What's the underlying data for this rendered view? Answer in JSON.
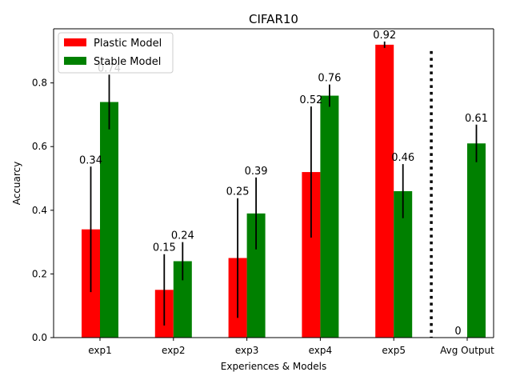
{
  "chart_data": {
    "type": "bar",
    "title": "CIFAR10",
    "xlabel": "Experiences & Models",
    "ylabel": "Accuarcy",
    "categories": [
      "exp1",
      "exp2",
      "exp3",
      "exp4",
      "exp5",
      "Avg Output"
    ],
    "ylim": [
      0,
      0.97
    ],
    "yticks": [
      0.0,
      0.2,
      0.4,
      0.6,
      0.8
    ],
    "ytick_labels": [
      "0.0",
      "0.2",
      "0.4",
      "0.6",
      "0.8"
    ],
    "grid": false,
    "legend_position": "upper-left",
    "series": [
      {
        "name": "Plastic Model",
        "color": "#ff0000",
        "values": [
          0.34,
          0.15,
          0.25,
          0.52,
          0.92,
          0
        ],
        "labels": [
          "0.34",
          "0.15",
          "0.25",
          "0.52",
          "0.92",
          "0"
        ],
        "error": [
          0.197,
          0.112,
          0.188,
          0.206,
          0.01,
          0
        ]
      },
      {
        "name": "Stable Model",
        "color": "#008000",
        "values": [
          0.74,
          0.24,
          0.39,
          0.76,
          0.46,
          0.61
        ],
        "labels": [
          "0.74",
          "0.24",
          "0.39",
          "0.76",
          "0.46",
          "0.61"
        ],
        "error": [
          0.086,
          0.06,
          0.113,
          0.035,
          0.085,
          0.059
        ]
      }
    ],
    "separator": {
      "between": [
        "exp5",
        "Avg Output"
      ],
      "style": "dotted",
      "color": "#000000"
    }
  }
}
